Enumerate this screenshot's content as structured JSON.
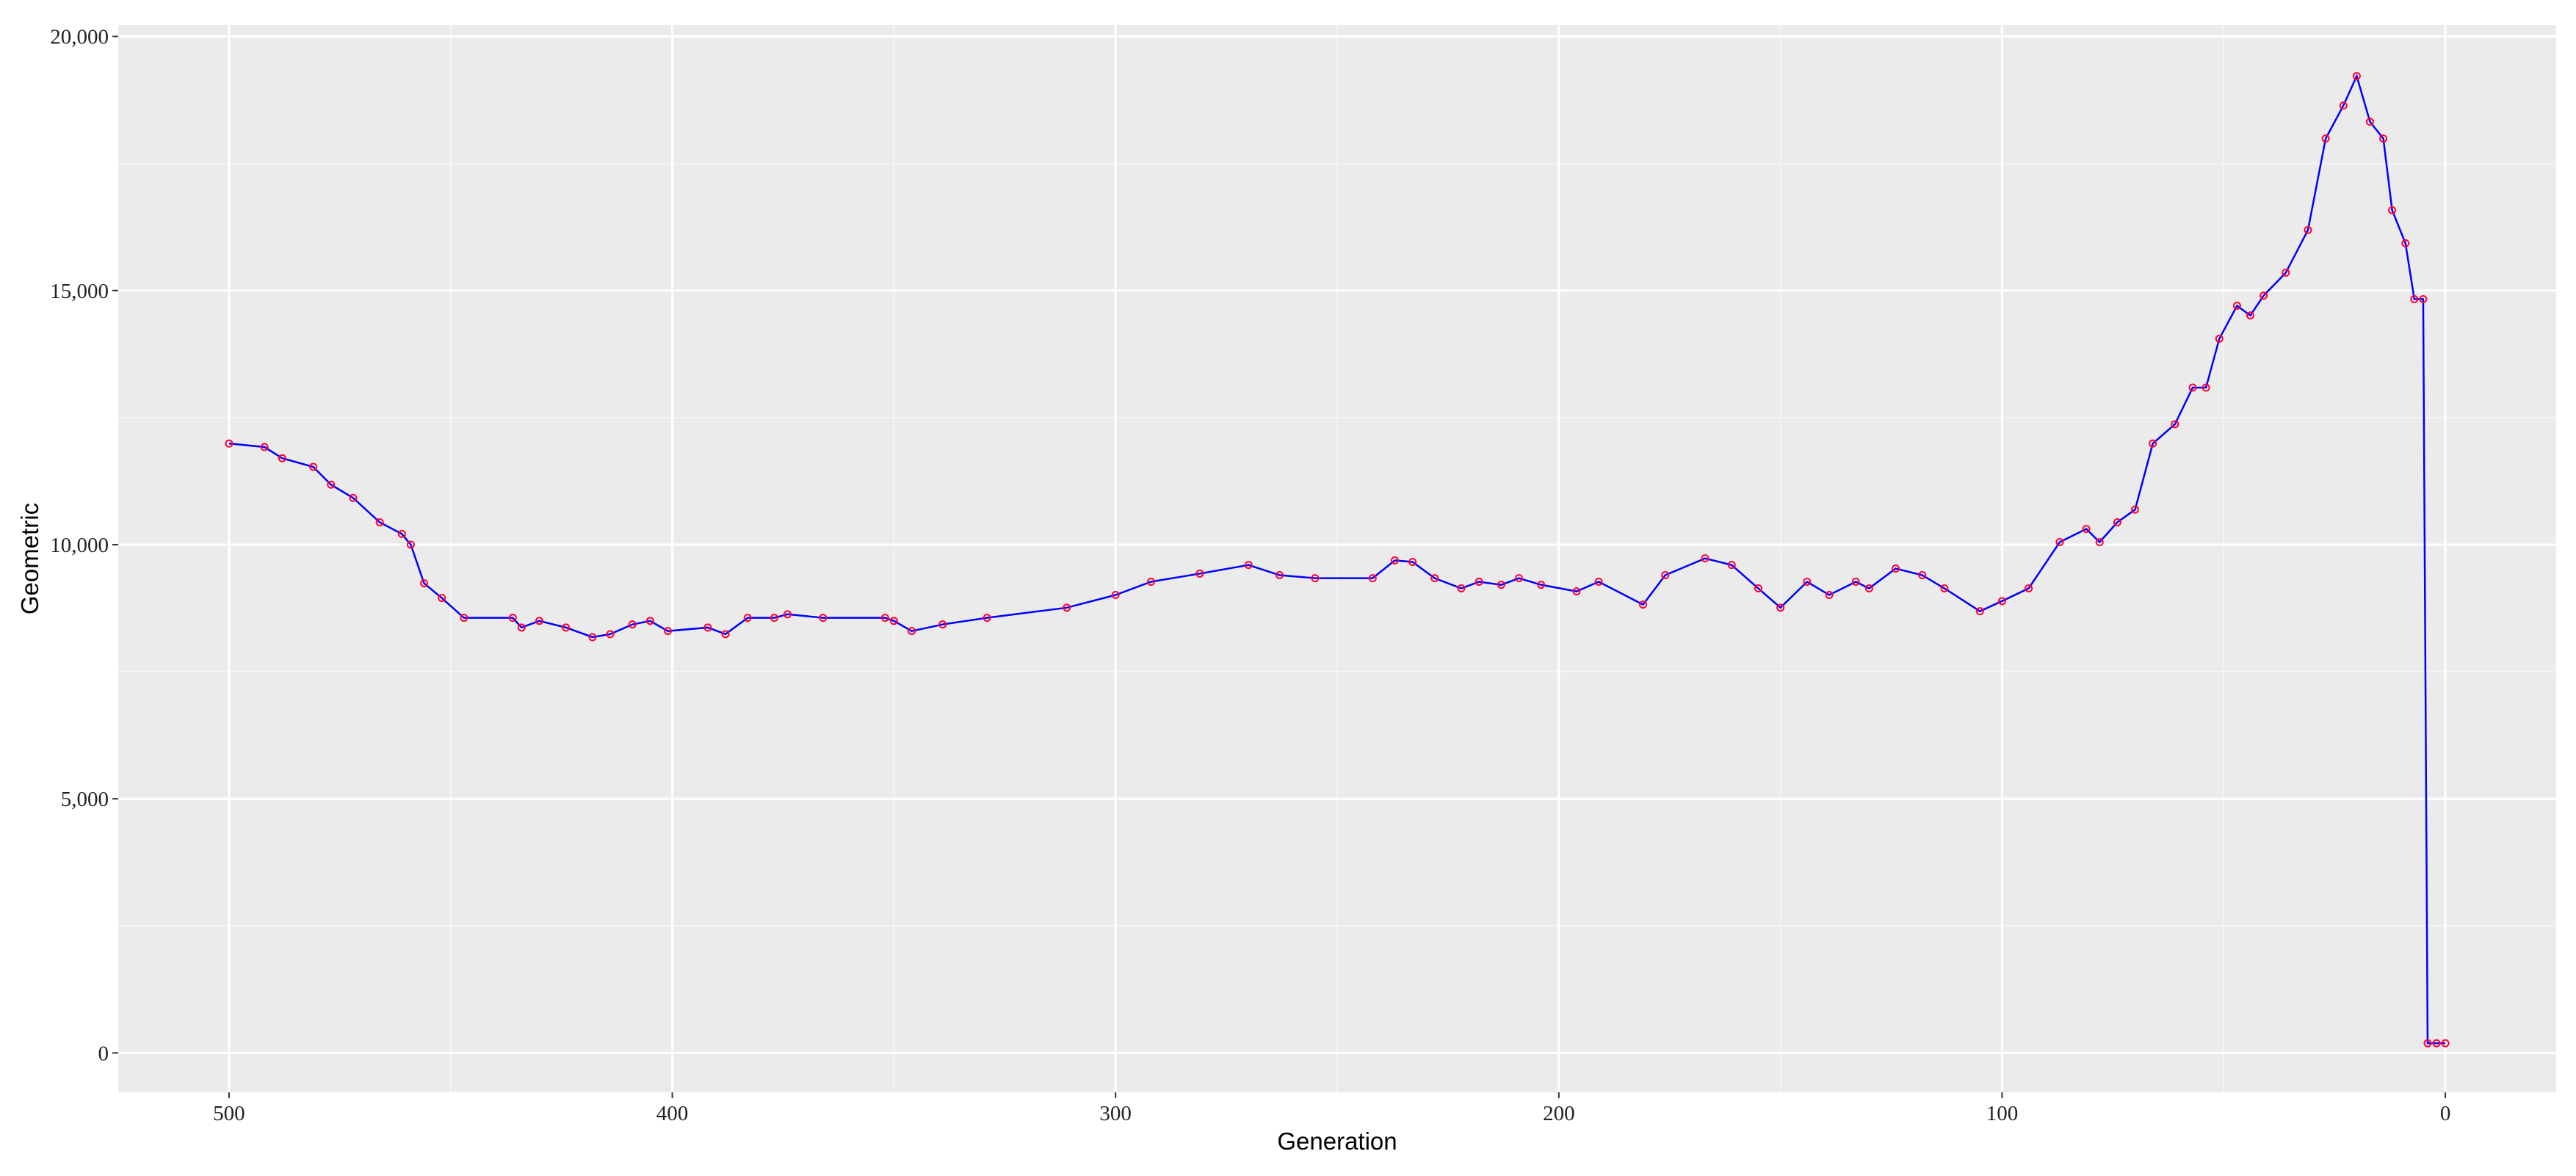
{
  "chart_data": {
    "type": "line",
    "x_label": "Generation",
    "y_label": "Geometric",
    "color": "#0000ff",
    "marker_color": "#ff0033",
    "grid": true,
    "xlim": [
      525,
      -25
    ],
    "ylim": [
      -775,
      20225
    ],
    "xticks": [
      500,
      400,
      300,
      200,
      100,
      0
    ],
    "yticks": [
      0,
      {
        "value": 5000,
        "label": "5,000"
      },
      {
        "value": 10000,
        "label": "10,000"
      },
      {
        "value": 15000,
        "label": "15,000"
      },
      {
        "value": 20000,
        "label": "20,000"
      }
    ],
    "x": [
      500,
      492,
      488,
      481,
      477,
      472,
      466,
      461,
      459,
      456,
      452,
      447,
      436,
      434,
      430,
      424,
      418,
      414,
      409,
      405,
      401,
      392,
      388,
      383,
      377,
      374,
      366,
      352,
      350,
      346,
      339,
      329,
      311,
      300,
      292,
      281,
      270,
      263,
      255,
      242,
      237,
      233,
      228,
      222,
      218,
      213,
      209,
      204,
      196,
      191,
      181,
      176,
      167,
      161,
      155,
      150,
      144,
      139,
      133,
      130,
      124,
      118,
      113,
      105,
      100,
      94,
      87,
      81,
      78,
      74,
      70,
      66,
      61,
      57,
      54,
      51,
      47,
      44,
      41,
      36,
      31,
      27,
      23,
      20,
      17,
      14,
      12,
      9,
      7,
      5,
      4,
      2,
      0
    ],
    "values": [
      11990,
      11920,
      11700,
      11530,
      11180,
      10920,
      10440,
      10210,
      10000,
      9240,
      8950,
      8560,
      8560,
      8370,
      8500,
      8370,
      8180,
      8240,
      8430,
      8500,
      8300,
      8370,
      8240,
      8560,
      8560,
      8630,
      8560,
      8560,
      8500,
      8300,
      8430,
      8560,
      8760,
      9010,
      9270,
      9430,
      9600,
      9400,
      9340,
      9340,
      9690,
      9660,
      9340,
      9140,
      9270,
      9210,
      9340,
      9210,
      9080,
      9270,
      8820,
      9400,
      9730,
      9600,
      9140,
      8760,
      9270,
      9010,
      9270,
      9140,
      9530,
      9400,
      9140,
      8690,
      8890,
      9140,
      10050,
      10310,
      10050,
      10440,
      10690,
      11990,
      12370,
      13090,
      13090,
      14050,
      14700,
      14510,
      14900,
      15350,
      16190,
      17990,
      18640,
      19220,
      18320,
      17990,
      16580,
      15930,
      14830,
      14830,
      190,
      190,
      190
    ]
  }
}
